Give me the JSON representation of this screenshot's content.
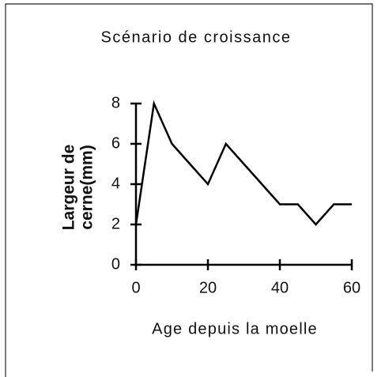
{
  "chart_data": {
    "type": "line",
    "title": "Scénario de croissance",
    "xlabel": "Age depuis la moelle",
    "ylabel": [
      "Largeur de",
      "cerne(mm)"
    ],
    "x": [
      0,
      5,
      10,
      15,
      20,
      25,
      30,
      35,
      40,
      45,
      50,
      55,
      60
    ],
    "series": [
      {
        "color": "#000000",
        "values": [
          2,
          8,
          6,
          5,
          4,
          6,
          5,
          4,
          3,
          3,
          2,
          3,
          3
        ]
      }
    ],
    "xlim": [
      0,
      60
    ],
    "xticks": [
      0,
      20,
      40,
      60
    ],
    "ylim": [
      0,
      8
    ],
    "yticks": [
      0,
      2,
      4,
      6,
      8
    ]
  }
}
